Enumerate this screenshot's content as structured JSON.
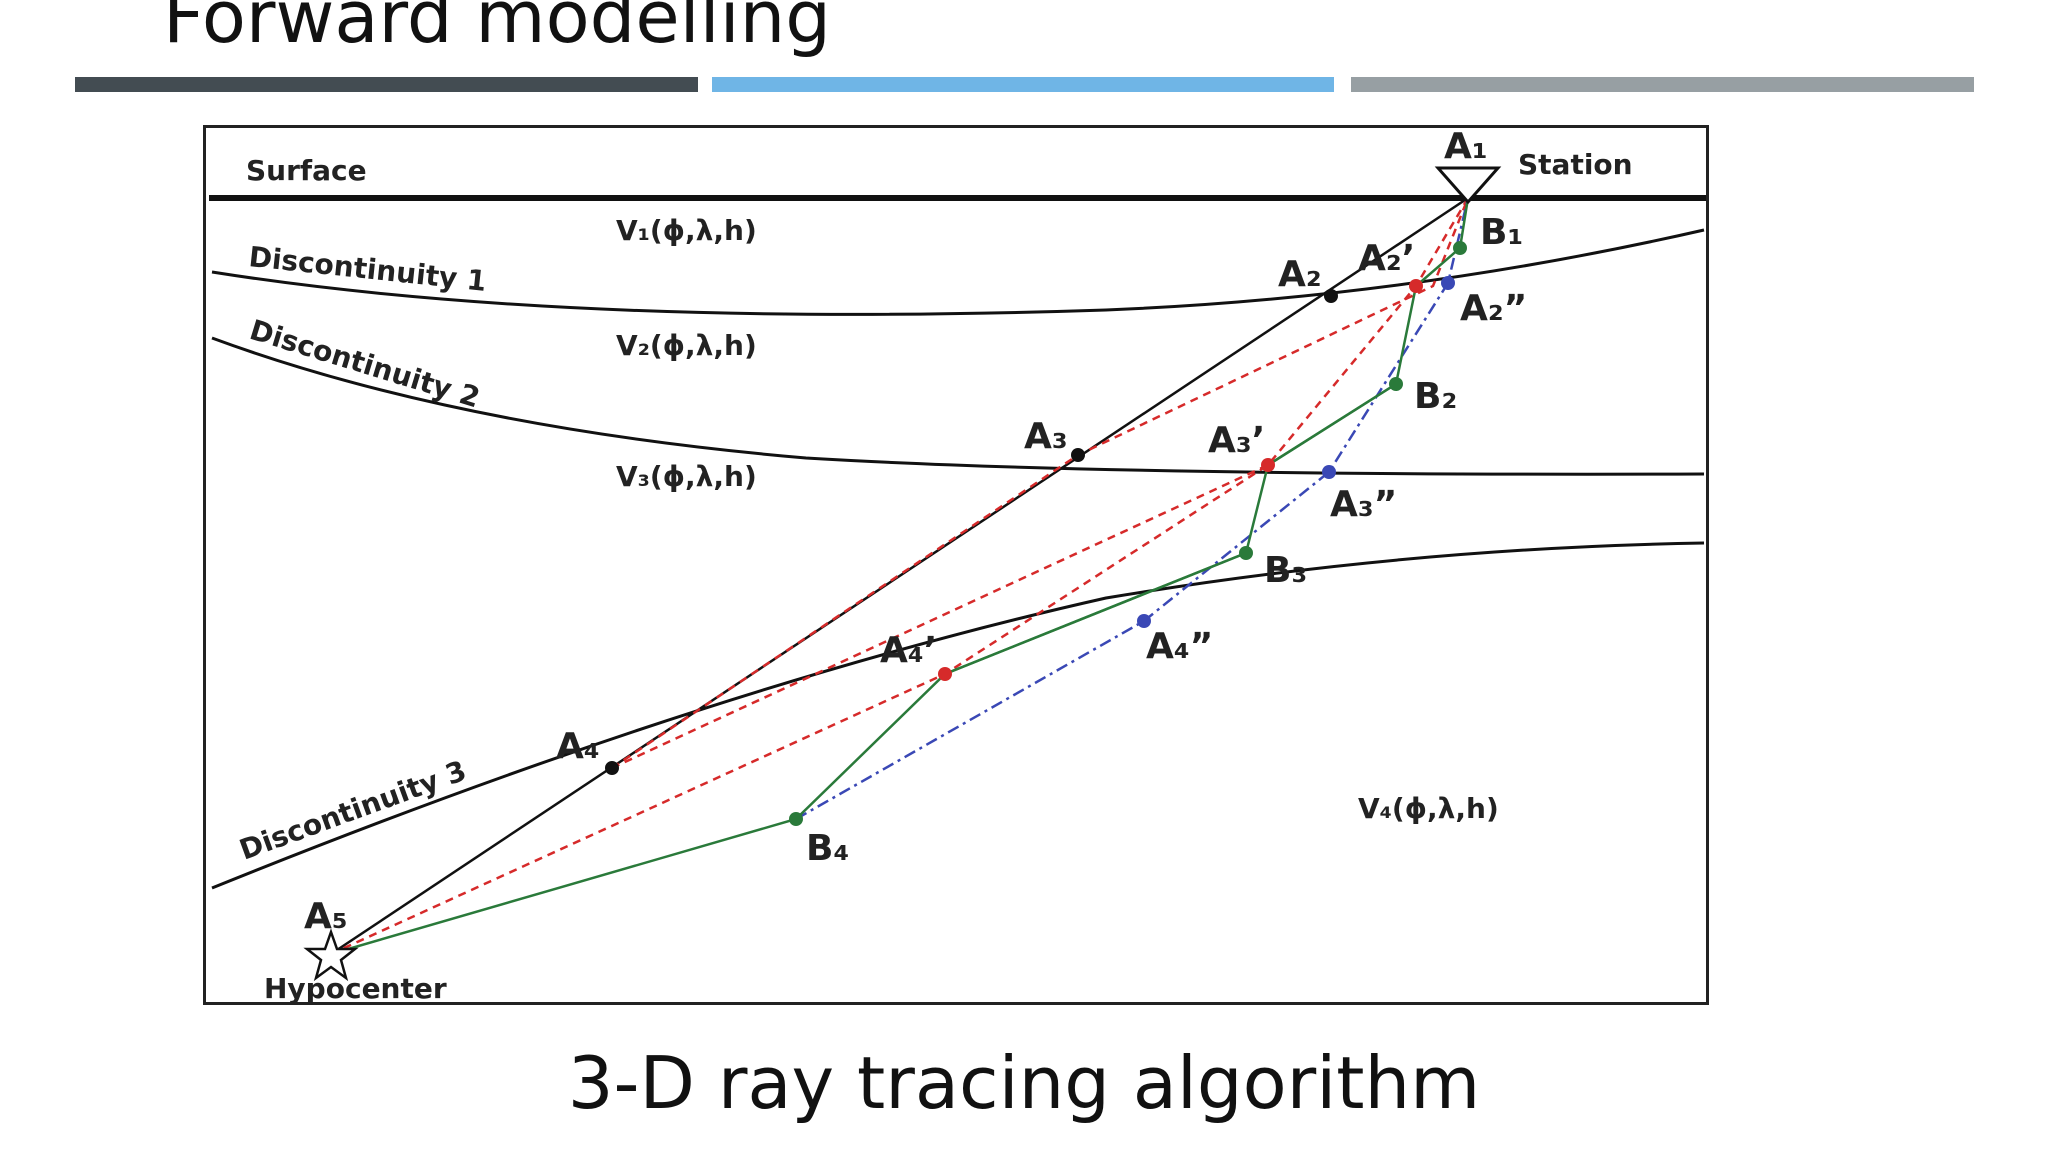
{
  "slide": {
    "title": "Forward modelling",
    "caption": "3-D ray tracing algorithm",
    "accent_bars": [
      "#434c52",
      "#6fb5e6",
      "#979fa3"
    ]
  },
  "figure": {
    "surface_label": "Surface",
    "station_label": "Station",
    "hypocenter_label": "Hypocenter",
    "discontinuities": [
      "Discontinuity 1",
      "Discontinuity 2",
      "Discontinuity 3"
    ],
    "velocities": [
      "V₁(ϕ,λ,h)",
      "V₂(ϕ,λ,h)",
      "V₃(ϕ,λ,h)",
      "V₄(ϕ,λ,h)"
    ],
    "points": {
      "A1": "A₁",
      "A2": "A₂",
      "A3": "A₃",
      "A4": "A₄",
      "A5": "A₅",
      "A2p": "A₂’",
      "A3p": "A₃’",
      "A4p": "A₄’",
      "A2pp": "A₂”",
      "A3pp": "A₃”",
      "A4pp": "A₄”",
      "B1": "B₁",
      "B2": "B₂",
      "B3": "B₃",
      "B4": "B₄"
    },
    "colors": {
      "initial_ray": "#111111",
      "red_ray": "#d62a2a",
      "blue_ray": "#3a48b5",
      "green_ray": "#2a7a3a"
    }
  }
}
